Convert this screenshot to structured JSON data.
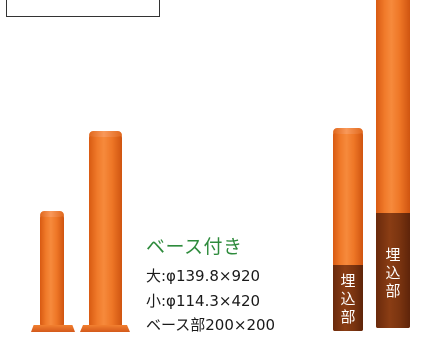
{
  "caption": {
    "heading": "ベース付き",
    "lines": [
      "大:φ139.8×920",
      "小:φ114.3×420",
      "ベース部200×200"
    ]
  },
  "embedded_label_short": [
    "埋",
    "込",
    "部"
  ],
  "embedded_label_tall": [
    "埋",
    "込",
    "部"
  ],
  "colors": {
    "post_orange": "#f07a2a",
    "embedded_brown": "#7a3410",
    "heading_green": "#2e8b3c"
  }
}
